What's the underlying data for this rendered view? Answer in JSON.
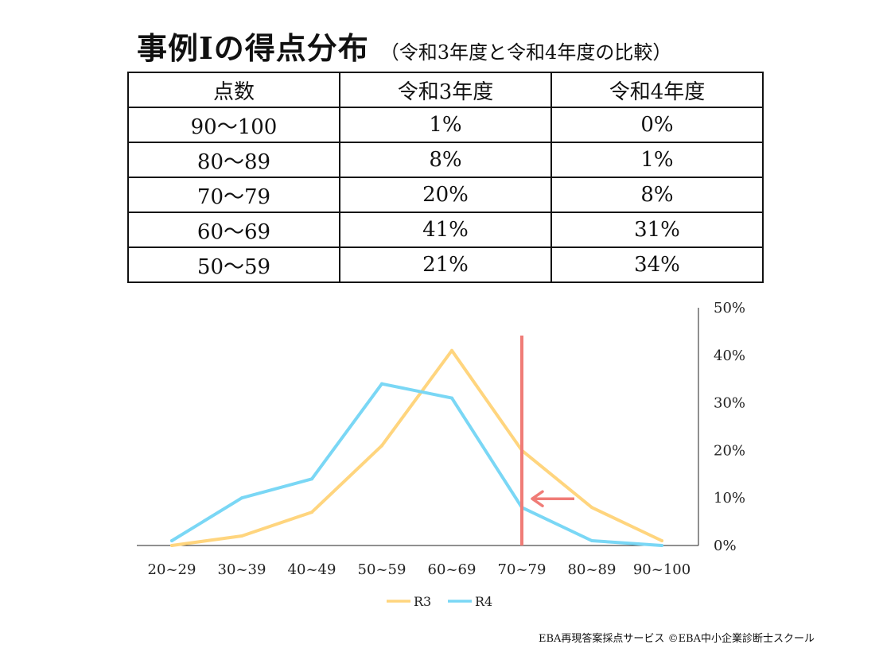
{
  "header": {
    "title": "事例Ⅰの得点分布",
    "subtitle": "（令和3年度と令和4年度の比較）"
  },
  "table": {
    "columns": [
      "点数",
      "令和3年度",
      "令和4年度"
    ],
    "rows": [
      [
        "90〜100",
        "1%",
        "0%"
      ],
      [
        "80〜89",
        "8%",
        "1%"
      ],
      [
        "70〜79",
        "20%",
        "8%"
      ],
      [
        "60〜69",
        "41%",
        "31%"
      ],
      [
        "50〜59",
        "21%",
        "34%"
      ]
    ]
  },
  "chart_data": {
    "type": "line",
    "categories": [
      "20~29",
      "30~39",
      "40~49",
      "50~59",
      "60~69",
      "70~79",
      "80~89",
      "90~100"
    ],
    "series": [
      {
        "name": "R3",
        "color": "#FFD57E",
        "values": [
          0,
          2,
          7,
          21,
          41,
          20,
          8,
          1
        ]
      },
      {
        "name": "R4",
        "color": "#7AD7F5",
        "values": [
          1,
          10,
          14,
          34,
          31,
          8,
          1,
          0
        ]
      }
    ],
    "ylim": [
      0,
      50
    ],
    "yticks": [
      "0%",
      "10%",
      "20%",
      "30%",
      "40%",
      "50%"
    ],
    "y_axis_side": "right",
    "legend_position": "bottom",
    "annotations": {
      "vertical_marker": {
        "category": "70~79",
        "color": "#F07C77"
      },
      "arrow": {
        "direction": "left",
        "at_value": 10,
        "color": "#F07C77"
      }
    }
  },
  "footer": {
    "credit": "EBA再現答案採点サービス ©EBA中小企業診断士スクール"
  }
}
